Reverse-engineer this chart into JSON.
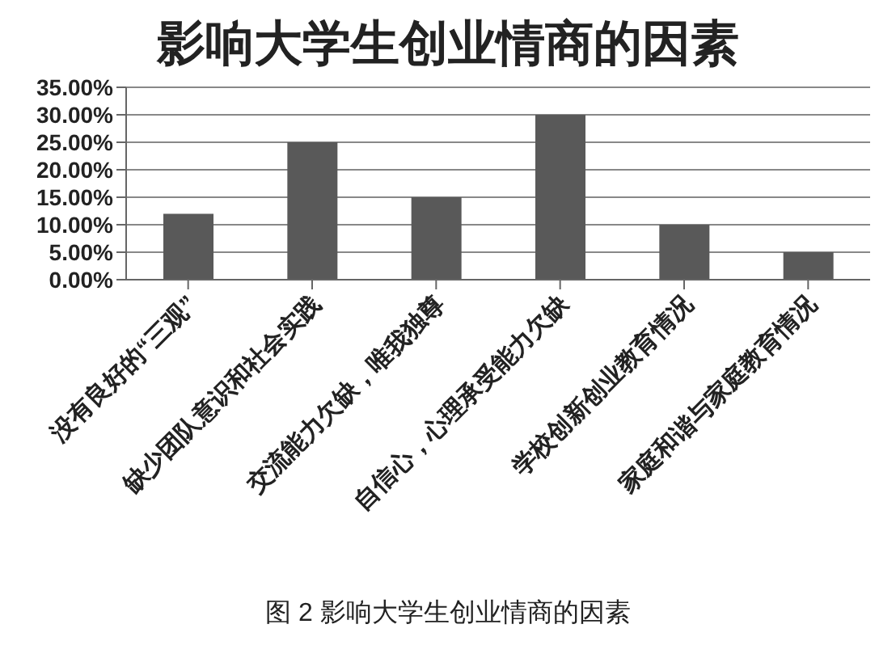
{
  "chart_data": {
    "type": "bar",
    "title": "影响大学生创业情商的因素",
    "categories": [
      "没有良好的“三观”",
      "缺少团队意识和社会实践",
      "交流能力欠缺，唯我独尊",
      "自信心，心理承受能力欠缺",
      "学校创新创业教育情况",
      "家庭和谐与家庭教育情况"
    ],
    "values": [
      12,
      25,
      15,
      30,
      10,
      5
    ],
    "color": "#595959",
    "ylim": [
      0,
      35
    ],
    "yticks": [
      {
        "value": 0,
        "label": "0.00%"
      },
      {
        "value": 5,
        "label": "5.00%"
      },
      {
        "value": 10,
        "label": "10.00%"
      },
      {
        "value": 15,
        "label": "15.00%"
      },
      {
        "value": 20,
        "label": "20.00%"
      },
      {
        "value": 25,
        "label": "25.00%"
      },
      {
        "value": 30,
        "label": "30.00%"
      },
      {
        "value": 35,
        "label": "35.00%"
      }
    ],
    "grid": "y",
    "legend": false,
    "annotations": [
      "图 2  影响大学生创业情商的因素"
    ]
  }
}
